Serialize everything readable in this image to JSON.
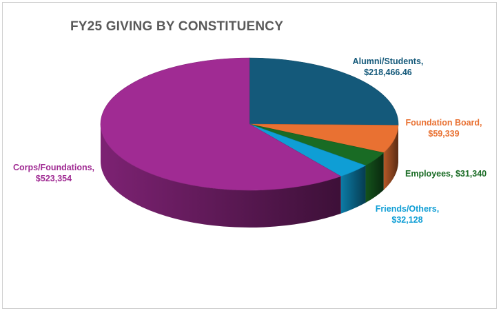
{
  "chart_data": {
    "type": "pie",
    "title": "FY25 GIVING BY CONSTITUENCY",
    "slices": [
      {
        "name": "Alumni/Students",
        "label_line1": "Alumni/Students,",
        "label_line2": "$218,466.46",
        "value": 218466.46,
        "color": "#14597A"
      },
      {
        "name": "Foundation Board",
        "label_line1": "Foundation Board,",
        "label_line2": "$59,339",
        "value": 59339,
        "color": "#E97132"
      },
      {
        "name": "Employees",
        "label_line1": "Employees, $31,340",
        "label_line2": "",
        "value": 31340,
        "color": "#196B24"
      },
      {
        "name": "Friends/Others",
        "label_line1": "Friends/Others,",
        "label_line2": "$32,128",
        "value": 32128,
        "color": "#0F9ED5"
      },
      {
        "name": "Corps/Foundations",
        "label_line1": "Corps/Foundations,",
        "label_line2": "$523,354",
        "value": 523354,
        "color": "#A02B93"
      }
    ]
  }
}
